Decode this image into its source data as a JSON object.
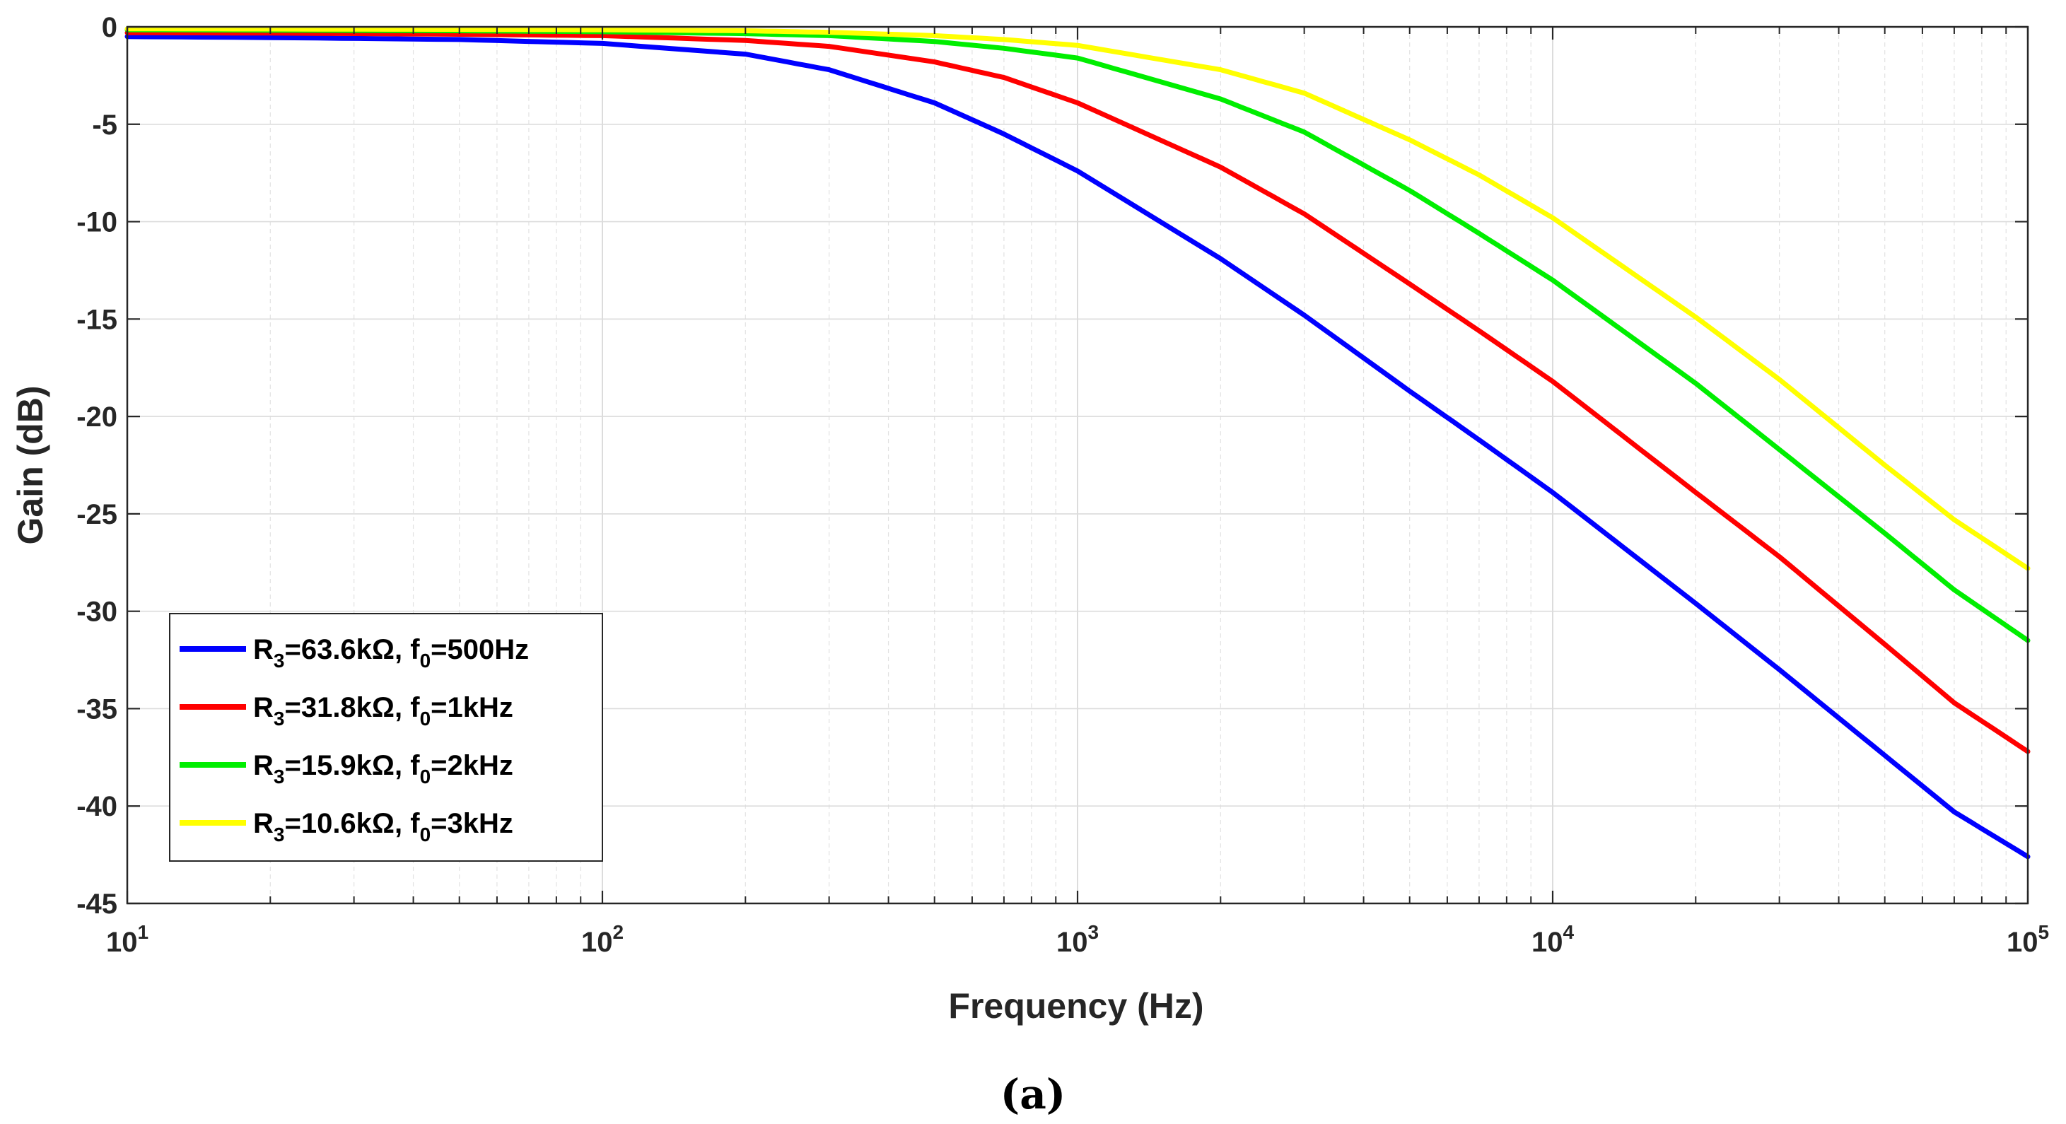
{
  "chart_data": {
    "type": "line",
    "title": "",
    "xlabel": "Frequency (Hz)",
    "ylabel": "Gain (dB)",
    "xscale": "log",
    "xlim": [
      10,
      100000
    ],
    "ylim": [
      -45,
      0
    ],
    "grid": true,
    "minor_grid": true,
    "legend_position": "bottom-left",
    "caption": "(a)",
    "y_ticks": [
      "0",
      "-5",
      "-10",
      "-15",
      "-20",
      "-25",
      "-30",
      "-35",
      "-40",
      "-45"
    ],
    "x_ticks": [
      {
        "base": "10",
        "exp": "1"
      },
      {
        "base": "10",
        "exp": "2"
      },
      {
        "base": "10",
        "exp": "3"
      },
      {
        "base": "10",
        "exp": "4"
      },
      {
        "base": "10",
        "exp": "5"
      }
    ],
    "x": [
      10,
      20,
      50,
      100,
      200,
      300,
      500,
      700,
      1000,
      2000,
      3000,
      5000,
      7000,
      10000,
      20000,
      30000,
      50000,
      70000,
      100000
    ],
    "series": [
      {
        "name": "R3=63.6kΩ, f0=500Hz",
        "legend": {
          "r": "R",
          "r_sub": "3",
          "r_val": "=63.6kΩ, ",
          "f": "f",
          "f_sub": "0",
          "f_val": "=500Hz"
        },
        "color": "#0000ff",
        "values": [
          -0.5,
          -0.55,
          -0.65,
          -0.85,
          -1.4,
          -2.2,
          -3.9,
          -5.5,
          -7.4,
          -11.9,
          -14.8,
          -18.7,
          -21.2,
          -23.9,
          -29.6,
          -33.0,
          -37.4,
          -40.3,
          -42.6
        ]
      },
      {
        "name": "R3=31.8kΩ, f0=1kHz",
        "legend": {
          "r": "R",
          "r_sub": "3",
          "r_val": "=31.8kΩ, ",
          "f": "f",
          "f_sub": "0",
          "f_val": "=1kHz"
        },
        "color": "#ff0000",
        "values": [
          -0.3,
          -0.32,
          -0.38,
          -0.45,
          -0.7,
          -1.0,
          -1.8,
          -2.6,
          -3.9,
          -7.2,
          -9.6,
          -13.2,
          -15.6,
          -18.2,
          -23.9,
          -27.2,
          -31.7,
          -34.7,
          -37.2
        ]
      },
      {
        "name": "R3=15.9kΩ, f0=2kHz",
        "legend": {
          "r": "R",
          "r_sub": "3",
          "r_val": "=15.9kΩ, ",
          "f": "f",
          "f_sub": "0",
          "f_val": "=2kHz"
        },
        "color": "#00ee00",
        "values": [
          -0.15,
          -0.17,
          -0.2,
          -0.25,
          -0.35,
          -0.45,
          -0.75,
          -1.1,
          -1.6,
          -3.7,
          -5.4,
          -8.4,
          -10.6,
          -13.0,
          -18.3,
          -21.7,
          -26.0,
          -28.9,
          -31.5
        ]
      },
      {
        "name": "R3=10.6kΩ, f0=3kHz",
        "legend": {
          "r": "R",
          "r_sub": "3",
          "r_val": "=10.6kΩ, ",
          "f": "f",
          "f_sub": "0",
          "f_val": "=3kHz"
        },
        "color": "#ffff00",
        "values": [
          -0.1,
          -0.11,
          -0.13,
          -0.15,
          -0.2,
          -0.28,
          -0.45,
          -0.65,
          -0.95,
          -2.2,
          -3.4,
          -5.8,
          -7.6,
          -9.8,
          -14.9,
          -18.1,
          -22.5,
          -25.3,
          -27.8
        ]
      }
    ]
  }
}
